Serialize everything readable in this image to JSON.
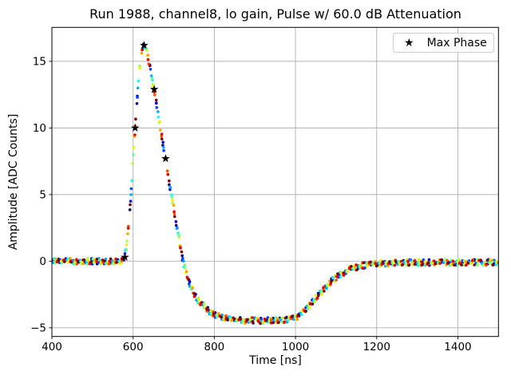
{
  "figure": {
    "background": "#ffffff",
    "grid_color": "#b0b0b0",
    "spine_color": "#000000",
    "tick_color": "#000000",
    "legend_border_color": "#cccccc",
    "marker_color": "#000000"
  },
  "chart_data": {
    "type": "scatter",
    "title": "Run 1988, channel8, lo gain, Pulse w/ 60.0 dB Attenuation",
    "xlabel": "Time [ns]",
    "ylabel": "Amplitude [ADC Counts]",
    "xlim": [
      400,
      1500
    ],
    "ylim": [
      -5.65,
      17.55
    ],
    "grid": true,
    "xticks": [
      {
        "value": 400,
        "label": "400"
      },
      {
        "value": 600,
        "label": "600"
      },
      {
        "value": 800,
        "label": "800"
      },
      {
        "value": 1000,
        "label": "1000"
      },
      {
        "value": 1200,
        "label": "1200"
      },
      {
        "value": 1400,
        "label": "1400"
      }
    ],
    "yticks": [
      {
        "value": -5,
        "label": "−5"
      },
      {
        "value": 0,
        "label": "0"
      },
      {
        "value": 5,
        "label": "5"
      },
      {
        "value": 10,
        "label": "10"
      },
      {
        "value": 15,
        "label": "15"
      }
    ],
    "legend": {
      "position": "upper right",
      "entries": [
        {
          "marker": "star",
          "color": "#000000",
          "label": "Max Phase"
        }
      ]
    },
    "series_style": {
      "marker": "dot",
      "dot_radius_px": 1.8,
      "palette_name": "jet",
      "palette": [
        "#000080",
        "#0000cd",
        "#0044ff",
        "#00acff",
        "#17ffe0",
        "#63ff94",
        "#b1ff46",
        "#f1f400",
        "#ffa400",
        "#ff4f00",
        "#e00b00",
        "#800000"
      ],
      "n_traces": 12,
      "sample_period_ns": 16,
      "amplitude_noise": 0.22,
      "time_jitter_ns": 3
    },
    "pulse_waveform": {
      "description": "Representative pulse shape (ns, ADC counts); each colored trace samples this waveform at a different phase with small noise.",
      "points": [
        [
          400,
          0.0
        ],
        [
          560,
          0.0
        ],
        [
          572,
          0.05
        ],
        [
          578,
          0.25
        ],
        [
          583,
          0.9
        ],
        [
          588,
          2.3
        ],
        [
          593,
          4.2
        ],
        [
          598,
          6.5
        ],
        [
          603,
          9.0
        ],
        [
          608,
          11.3
        ],
        [
          613,
          13.4
        ],
        [
          618,
          15.0
        ],
        [
          622,
          15.9
        ],
        [
          626,
          16.25
        ],
        [
          630,
          16.15
        ],
        [
          634,
          15.7
        ],
        [
          639,
          14.9
        ],
        [
          645,
          13.9
        ],
        [
          652,
          12.9
        ],
        [
          658,
          11.7
        ],
        [
          664,
          10.6
        ],
        [
          670,
          9.5
        ],
        [
          676,
          8.4
        ],
        [
          682,
          7.4
        ],
        [
          688,
          6.1
        ],
        [
          696,
          4.7
        ],
        [
          704,
          3.3
        ],
        [
          712,
          1.9
        ],
        [
          718,
          0.8
        ],
        [
          724,
          -0.15
        ],
        [
          732,
          -1.0
        ],
        [
          740,
          -1.75
        ],
        [
          748,
          -2.3
        ],
        [
          757,
          -2.85
        ],
        [
          767,
          -3.15
        ],
        [
          778,
          -3.5
        ],
        [
          790,
          -3.8
        ],
        [
          802,
          -4.0
        ],
        [
          815,
          -4.18
        ],
        [
          830,
          -4.3
        ],
        [
          848,
          -4.4
        ],
        [
          870,
          -4.45
        ],
        [
          900,
          -4.45
        ],
        [
          930,
          -4.45
        ],
        [
          955,
          -4.44
        ],
        [
          978,
          -4.4
        ],
        [
          995,
          -4.32
        ],
        [
          1005,
          -4.2
        ],
        [
          1015,
          -3.95
        ],
        [
          1025,
          -3.65
        ],
        [
          1035,
          -3.3
        ],
        [
          1045,
          -2.95
        ],
        [
          1055,
          -2.6
        ],
        [
          1065,
          -2.25
        ],
        [
          1075,
          -1.92
        ],
        [
          1085,
          -1.62
        ],
        [
          1095,
          -1.35
        ],
        [
          1105,
          -1.12
        ],
        [
          1115,
          -0.92
        ],
        [
          1125,
          -0.75
        ],
        [
          1135,
          -0.61
        ],
        [
          1145,
          -0.5
        ],
        [
          1155,
          -0.41
        ],
        [
          1170,
          -0.31
        ],
        [
          1185,
          -0.24
        ],
        [
          1200,
          -0.19
        ],
        [
          1230,
          -0.14
        ],
        [
          1270,
          -0.11
        ],
        [
          1320,
          -0.1
        ],
        [
          1400,
          -0.09
        ],
        [
          1500,
          -0.08
        ]
      ]
    },
    "max_phase_points": [
      [
        580,
        0.3
      ],
      [
        605,
        10.0
      ],
      [
        627,
        16.2
      ],
      [
        652,
        12.9
      ],
      [
        680,
        7.7
      ]
    ]
  }
}
